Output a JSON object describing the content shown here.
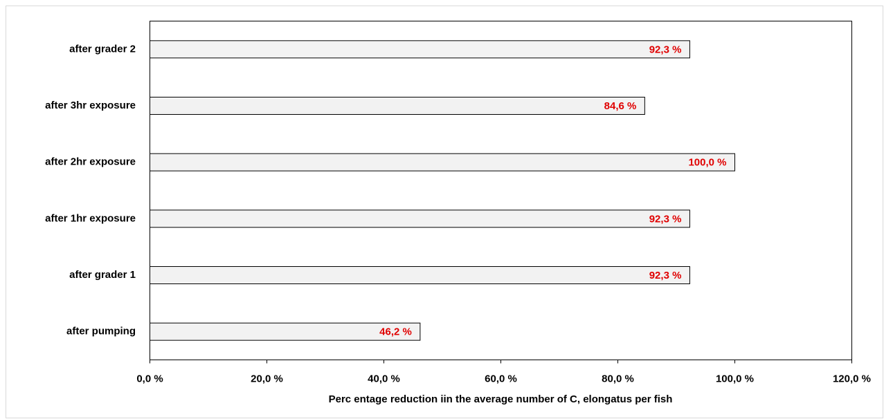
{
  "chart_data": {
    "type": "barh",
    "categories": [
      "after grader 2",
      "after 3hr exposure",
      "after 2hr exposure",
      "after 1hr exposure",
      "after grader 1",
      "after pumping"
    ],
    "values": [
      92.3,
      84.6,
      100.0,
      92.3,
      92.3,
      46.2
    ],
    "value_labels": [
      "92,3 %",
      "84,6 %",
      "100,0 %",
      "92,3 %",
      "92,3 %",
      "46,2 %"
    ],
    "color": "#f2f2f2",
    "xlabel": "Perc entage reduction iin the average number  of  C, elongatus per fish",
    "xlim": [
      0,
      120
    ],
    "xticks": [
      {
        "value": 0,
        "label": "0,0 %"
      },
      {
        "value": 20,
        "label": "20,0 %"
      },
      {
        "value": 40,
        "label": "40,0 %"
      },
      {
        "value": 60,
        "label": "60,0 %"
      },
      {
        "value": 80,
        "label": "80,0 %"
      },
      {
        "value": 100,
        "label": "100,0 %"
      },
      {
        "value": 120,
        "label": "120,0 %"
      }
    ],
    "grid": false
  }
}
